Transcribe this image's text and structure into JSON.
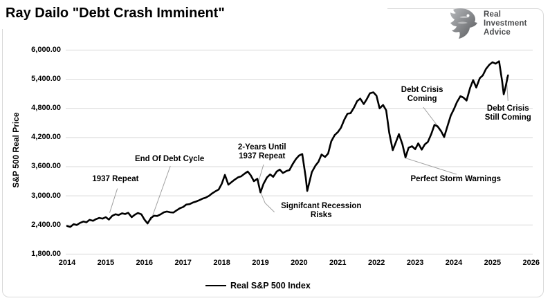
{
  "title": "Ray Dailo \"Debt Crash Imminent\"",
  "logo": {
    "name": "Real Investment Advice",
    "lines": [
      "Real",
      "Investment",
      "Advice"
    ]
  },
  "colors": {
    "line": "#000000",
    "grid": "#d9d9d9",
    "leader": "#a0a0a0",
    "border": "#d9d9d9",
    "logo_text": "#4a4b4d",
    "logo_eagle_light": "#b7b9bc",
    "logo_eagle_dark": "#55575a"
  },
  "chart_data": {
    "type": "line",
    "title": "Ray Dailo \"Debt Crash Imminent\"",
    "xlabel": "",
    "ylabel": "S&P 500 Real Price",
    "xlim": [
      2014,
      2026
    ],
    "ylim": [
      1800,
      6000
    ],
    "x_ticks": [
      2014,
      2015,
      2016,
      2017,
      2018,
      2019,
      2020,
      2021,
      2022,
      2023,
      2024,
      2025,
      2026
    ],
    "y_ticks": [
      1800,
      2400,
      3000,
      3600,
      4200,
      4800,
      5400,
      6000
    ],
    "grid": true,
    "legend": {
      "position": "bottom",
      "entries": [
        "Real S&P 500 Index"
      ]
    },
    "series": [
      {
        "name": "Real S&P 500 Index",
        "color": "#000000",
        "points": [
          [
            2014.0,
            2380
          ],
          [
            2014.08,
            2360
          ],
          [
            2014.17,
            2415
          ],
          [
            2014.25,
            2400
          ],
          [
            2014.33,
            2440
          ],
          [
            2014.42,
            2470
          ],
          [
            2014.5,
            2455
          ],
          [
            2014.58,
            2505
          ],
          [
            2014.67,
            2485
          ],
          [
            2014.75,
            2520
          ],
          [
            2014.83,
            2545
          ],
          [
            2014.92,
            2530
          ],
          [
            2015.0,
            2560
          ],
          [
            2015.08,
            2510
          ],
          [
            2015.17,
            2590
          ],
          [
            2015.25,
            2620
          ],
          [
            2015.33,
            2605
          ],
          [
            2015.42,
            2640
          ],
          [
            2015.5,
            2625
          ],
          [
            2015.58,
            2650
          ],
          [
            2015.67,
            2560
          ],
          [
            2015.75,
            2610
          ],
          [
            2015.83,
            2645
          ],
          [
            2015.92,
            2620
          ],
          [
            2016.0,
            2510
          ],
          [
            2016.08,
            2430
          ],
          [
            2016.17,
            2545
          ],
          [
            2016.25,
            2590
          ],
          [
            2016.33,
            2585
          ],
          [
            2016.42,
            2620
          ],
          [
            2016.5,
            2660
          ],
          [
            2016.58,
            2675
          ],
          [
            2016.67,
            2660
          ],
          [
            2016.75,
            2655
          ],
          [
            2016.83,
            2700
          ],
          [
            2016.92,
            2745
          ],
          [
            2017.0,
            2770
          ],
          [
            2017.08,
            2820
          ],
          [
            2017.17,
            2830
          ],
          [
            2017.25,
            2860
          ],
          [
            2017.33,
            2880
          ],
          [
            2017.42,
            2910
          ],
          [
            2017.5,
            2940
          ],
          [
            2017.58,
            2960
          ],
          [
            2017.67,
            3000
          ],
          [
            2017.75,
            3050
          ],
          [
            2017.83,
            3090
          ],
          [
            2017.92,
            3130
          ],
          [
            2018.0,
            3250
          ],
          [
            2018.08,
            3430
          ],
          [
            2018.17,
            3230
          ],
          [
            2018.25,
            3280
          ],
          [
            2018.33,
            3330
          ],
          [
            2018.42,
            3380
          ],
          [
            2018.5,
            3400
          ],
          [
            2018.58,
            3450
          ],
          [
            2018.67,
            3500
          ],
          [
            2018.75,
            3420
          ],
          [
            2018.83,
            3300
          ],
          [
            2018.92,
            3350
          ],
          [
            2019.0,
            3070
          ],
          [
            2019.08,
            3250
          ],
          [
            2019.17,
            3380
          ],
          [
            2019.25,
            3440
          ],
          [
            2019.33,
            3390
          ],
          [
            2019.42,
            3500
          ],
          [
            2019.5,
            3540
          ],
          [
            2019.58,
            3470
          ],
          [
            2019.67,
            3510
          ],
          [
            2019.75,
            3530
          ],
          [
            2019.83,
            3650
          ],
          [
            2019.92,
            3760
          ],
          [
            2020.0,
            3830
          ],
          [
            2020.08,
            3860
          ],
          [
            2020.17,
            3380
          ],
          [
            2020.21,
            3100
          ],
          [
            2020.33,
            3490
          ],
          [
            2020.42,
            3620
          ],
          [
            2020.5,
            3700
          ],
          [
            2020.58,
            3850
          ],
          [
            2020.67,
            3800
          ],
          [
            2020.75,
            3870
          ],
          [
            2020.83,
            4120
          ],
          [
            2020.92,
            4250
          ],
          [
            2021.0,
            4310
          ],
          [
            2021.08,
            4400
          ],
          [
            2021.17,
            4570
          ],
          [
            2021.25,
            4690
          ],
          [
            2021.33,
            4700
          ],
          [
            2021.42,
            4820
          ],
          [
            2021.5,
            4950
          ],
          [
            2021.58,
            5000
          ],
          [
            2021.67,
            4890
          ],
          [
            2021.75,
            4990
          ],
          [
            2021.83,
            5110
          ],
          [
            2021.92,
            5130
          ],
          [
            2022.0,
            5060
          ],
          [
            2022.08,
            4800
          ],
          [
            2022.17,
            4870
          ],
          [
            2022.25,
            4760
          ],
          [
            2022.33,
            4300
          ],
          [
            2022.42,
            3940
          ],
          [
            2022.5,
            4100
          ],
          [
            2022.58,
            4270
          ],
          [
            2022.67,
            4060
          ],
          [
            2022.75,
            3790
          ],
          [
            2022.83,
            3990
          ],
          [
            2022.92,
            4020
          ],
          [
            2023.0,
            3960
          ],
          [
            2023.08,
            4080
          ],
          [
            2023.17,
            3950
          ],
          [
            2023.25,
            4060
          ],
          [
            2023.33,
            4110
          ],
          [
            2023.42,
            4280
          ],
          [
            2023.5,
            4460
          ],
          [
            2023.58,
            4430
          ],
          [
            2023.67,
            4330
          ],
          [
            2023.75,
            4210
          ],
          [
            2023.83,
            4420
          ],
          [
            2023.92,
            4650
          ],
          [
            2024.0,
            4780
          ],
          [
            2024.08,
            4930
          ],
          [
            2024.17,
            5050
          ],
          [
            2024.25,
            5020
          ],
          [
            2024.33,
            4960
          ],
          [
            2024.42,
            5220
          ],
          [
            2024.5,
            5380
          ],
          [
            2024.58,
            5230
          ],
          [
            2024.67,
            5420
          ],
          [
            2024.75,
            5480
          ],
          [
            2024.83,
            5610
          ],
          [
            2024.92,
            5700
          ],
          [
            2025.0,
            5750
          ],
          [
            2025.08,
            5720
          ],
          [
            2025.17,
            5770
          ],
          [
            2025.25,
            5350
          ],
          [
            2025.29,
            5090
          ],
          [
            2025.33,
            5210
          ],
          [
            2025.4,
            5480
          ]
        ]
      }
    ],
    "annotations": [
      {
        "lines": [
          "1937 Repeat"
        ],
        "text_at": [
          2015.25,
          3429
        ],
        "leader": [
          [
            2015.3,
            3150
          ],
          [
            2015.1,
            2650
          ]
        ]
      },
      {
        "lines": [
          "End Of Debt Cycle"
        ],
        "text_at": [
          2016.65,
          3842
        ],
        "leader": [
          [
            2016.67,
            3614
          ],
          [
            2016.17,
            2500
          ]
        ]
      },
      {
        "lines": [
          "2-Years Until",
          "1937 Repeat"
        ],
        "text_at": [
          2019.04,
          4084
        ],
        "leader": [
          [
            2019.08,
            3643
          ],
          [
            2018.94,
            3270
          ]
        ]
      },
      {
        "lines": [
          "Signifcant Recession",
          "Risks"
        ],
        "text_at": [
          2020.57,
          2874
        ],
        "leader": [
          [
            2019.0,
            3080
          ],
          [
            2019.12,
            2850
          ],
          [
            2019.36,
            2665
          ]
        ]
      },
      {
        "lines": [
          "Debt Crisis",
          "Coming"
        ],
        "text_at": [
          2023.18,
          5266
        ],
        "leader": [
          [
            2023.21,
            4824
          ],
          [
            2023.66,
            4354
          ]
        ]
      },
      {
        "lines": [
          "Perfect Storm Warnings"
        ],
        "text_at": [
          2024.05,
          3429
        ],
        "leader": [
          [
            2022.77,
            3771
          ],
          [
            2024.07,
            3443
          ]
        ]
      },
      {
        "lines": [
          "Debt Crisis",
          "Still Coming"
        ],
        "text_at": [
          2025.4,
          4881
        ],
        "leader": [
          [
            2025.36,
            5451
          ],
          [
            2025.4,
            4952
          ]
        ]
      }
    ]
  }
}
